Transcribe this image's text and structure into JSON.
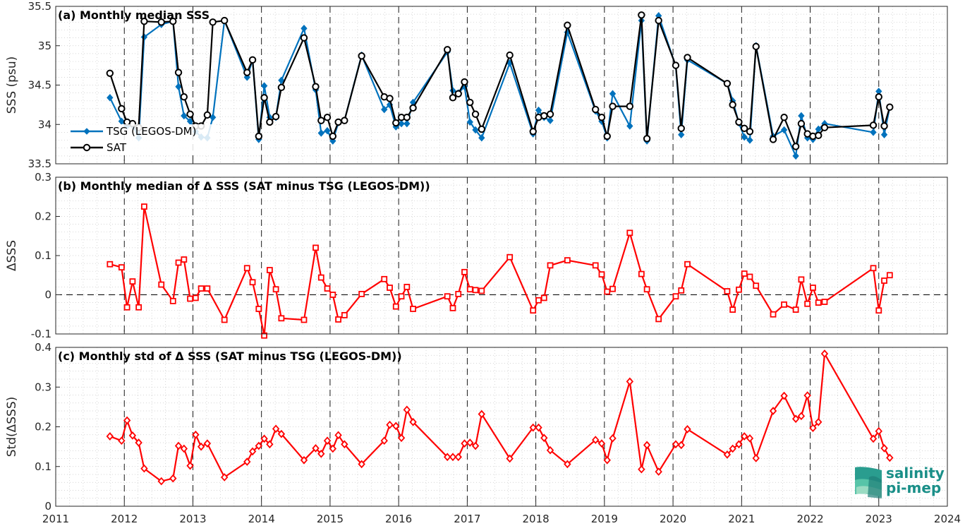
{
  "logo": {
    "line1": "salinity",
    "line2": "pi-mep"
  },
  "chart_data": [
    {
      "type": "line",
      "title": "(a) Monthly median SSS",
      "ylabel": "SSS (psu)",
      "xlabel": "",
      "xlim": [
        2011,
        2024
      ],
      "ylim": [
        33.5,
        35.5
      ],
      "yticks": [
        33.5,
        34,
        34.5,
        35,
        35.5
      ],
      "ytick_labels": [
        "33.5",
        "34",
        "34.5",
        "35",
        "35.5"
      ],
      "grid": "minor dotted",
      "legend_position": "left",
      "series": [
        {
          "name": "TSG (LEGOS-DM)",
          "color": "#0072BD",
          "marker": "diamond",
          "x": [
            2011.79,
            2011.96,
            2012.04,
            2012.12,
            2012.21,
            2012.29,
            2012.54,
            2012.71,
            2012.79,
            2012.87,
            2012.96,
            2013.04,
            2013.12,
            2013.21,
            2013.29,
            2013.46,
            2013.79,
            2013.87,
            2013.96,
            2014.04,
            2014.12,
            2014.21,
            2014.29,
            2014.62,
            2014.79,
            2014.87,
            2014.96,
            2015.04,
            2015.12,
            2015.21,
            2015.46,
            2015.79,
            2015.87,
            2015.96,
            2016.04,
            2016.12,
            2016.21,
            2016.71,
            2016.79,
            2016.87,
            2016.96,
            2017.04,
            2017.12,
            2017.21,
            2017.62,
            2017.96,
            2018.04,
            2018.12,
            2018.21,
            2018.46,
            2018.87,
            2018.96,
            2019.04,
            2019.12,
            2019.37,
            2019.54,
            2019.62,
            2019.79,
            2020.04,
            2020.12,
            2020.21,
            2020.79,
            2020.87,
            2020.96,
            2021.04,
            2021.12,
            2021.21,
            2021.46,
            2021.62,
            2021.79,
            2021.87,
            2021.96,
            2022.04,
            2022.12,
            2022.21,
            2022.92,
            2023.0,
            2023.08,
            2023.16
          ],
          "y": [
            34.34,
            34.04,
            33.98,
            33.99,
            33.83,
            35.11,
            35.27,
            35.31,
            34.48,
            34.11,
            34.04,
            33.91,
            33.84,
            33.83,
            34.09,
            35.32,
            34.6,
            34.82,
            33.81,
            34.49,
            34.09,
            34.09,
            34.56,
            35.22,
            34.44,
            33.89,
            33.92,
            33.79,
            34.02,
            34.05,
            34.88,
            34.19,
            34.25,
            33.97,
            34.01,
            34.01,
            34.28,
            34.92,
            34.43,
            34.4,
            34.48,
            34.03,
            33.93,
            33.83,
            34.78,
            33.88,
            34.18,
            34.09,
            34.05,
            35.17,
            34.17,
            34.04,
            33.83,
            34.39,
            33.98,
            35.32,
            33.79,
            35.38,
            34.74,
            33.87,
            34.82,
            34.52,
            34.3,
            34.02,
            33.84,
            33.8,
            35.0,
            33.85,
            33.93,
            33.6,
            34.11,
            33.83,
            33.81,
            33.94,
            34.01,
            33.9,
            34.42,
            33.87,
            34.22
          ]
        },
        {
          "name": "SAT",
          "color": "#000000",
          "marker": "circle",
          "x": [
            2011.79,
            2011.96,
            2012.04,
            2012.12,
            2012.21,
            2012.29,
            2012.54,
            2012.71,
            2012.79,
            2012.87,
            2012.96,
            2013.04,
            2013.12,
            2013.21,
            2013.29,
            2013.46,
            2013.79,
            2013.87,
            2013.96,
            2014.04,
            2014.12,
            2014.21,
            2014.29,
            2014.62,
            2014.79,
            2014.87,
            2014.96,
            2015.04,
            2015.12,
            2015.21,
            2015.46,
            2015.79,
            2015.87,
            2015.96,
            2016.04,
            2016.12,
            2016.21,
            2016.71,
            2016.79,
            2016.87,
            2016.96,
            2017.04,
            2017.12,
            2017.21,
            2017.62,
            2017.96,
            2018.04,
            2018.12,
            2018.21,
            2018.46,
            2018.87,
            2018.96,
            2019.04,
            2019.12,
            2019.37,
            2019.54,
            2019.62,
            2019.79,
            2020.04,
            2020.12,
            2020.21,
            2020.79,
            2020.87,
            2020.96,
            2021.04,
            2021.12,
            2021.21,
            2021.46,
            2021.62,
            2021.79,
            2021.87,
            2021.96,
            2022.04,
            2022.12,
            2022.21,
            2022.92,
            2023.0,
            2023.08,
            2023.16
          ],
          "y": [
            34.65,
            34.2,
            34.03,
            34.01,
            33.96,
            35.31,
            35.3,
            35.31,
            34.66,
            34.35,
            34.13,
            33.98,
            33.98,
            34.12,
            35.3,
            35.32,
            34.66,
            34.82,
            33.85,
            34.34,
            34.03,
            34.1,
            34.47,
            35.1,
            34.48,
            34.05,
            34.09,
            33.85,
            34.03,
            34.05,
            34.87,
            34.35,
            34.33,
            34.02,
            34.09,
            34.09,
            34.21,
            34.95,
            34.34,
            34.39,
            34.54,
            34.28,
            34.13,
            33.94,
            34.88,
            33.91,
            34.09,
            34.11,
            34.13,
            35.26,
            34.19,
            34.09,
            33.85,
            34.23,
            34.23,
            35.39,
            33.82,
            35.32,
            34.75,
            33.95,
            34.85,
            34.52,
            34.25,
            34.03,
            33.95,
            33.91,
            34.99,
            33.81,
            34.09,
            33.72,
            34.01,
            33.88,
            33.85,
            33.86,
            33.96,
            33.99,
            34.35,
            33.98,
            34.22
          ]
        }
      ]
    },
    {
      "type": "line",
      "title": "(b) Monthly median of Δ SSS (SAT minus TSG (LEGOS-DM))",
      "ylabel": "ΔSSS",
      "xlabel": "",
      "xlim": [
        2011,
        2024
      ],
      "ylim": [
        -0.1,
        0.3
      ],
      "yticks": [
        -0.1,
        0,
        0.1,
        0.2,
        0.3
      ],
      "ytick_labels": [
        "-0.1",
        "0",
        "0.1",
        "0.2",
        "0.3"
      ],
      "zero_line": true,
      "grid": "minor dotted",
      "series": [
        {
          "name": "",
          "color": "#FF0000",
          "marker": "square",
          "x": [
            2011.79,
            2011.96,
            2012.04,
            2012.12,
            2012.21,
            2012.29,
            2012.54,
            2012.71,
            2012.79,
            2012.87,
            2012.96,
            2013.04,
            2013.12,
            2013.21,
            2013.46,
            2013.79,
            2013.87,
            2013.96,
            2014.04,
            2014.12,
            2014.21,
            2014.29,
            2014.62,
            2014.79,
            2014.87,
            2014.96,
            2015.04,
            2015.12,
            2015.21,
            2015.46,
            2015.79,
            2015.87,
            2015.96,
            2016.04,
            2016.12,
            2016.21,
            2016.71,
            2016.79,
            2016.87,
            2016.96,
            2017.04,
            2017.12,
            2017.21,
            2017.62,
            2017.96,
            2018.04,
            2018.12,
            2018.21,
            2018.46,
            2018.87,
            2018.96,
            2019.04,
            2019.12,
            2019.37,
            2019.54,
            2019.62,
            2019.79,
            2020.04,
            2020.12,
            2020.21,
            2020.79,
            2020.87,
            2020.96,
            2021.04,
            2021.12,
            2021.21,
            2021.46,
            2021.62,
            2021.79,
            2021.87,
            2021.96,
            2022.04,
            2022.12,
            2022.21,
            2022.92,
            2023.0,
            2023.08,
            2023.16
          ],
          "y": [
            0.078,
            0.07,
            -0.032,
            0.034,
            -0.032,
            0.225,
            0.026,
            -0.016,
            0.082,
            0.09,
            -0.01,
            -0.008,
            0.016,
            0.016,
            -0.064,
            0.068,
            0.032,
            -0.036,
            -0.104,
            0.063,
            0.014,
            -0.06,
            -0.064,
            0.12,
            0.044,
            0.016,
            0.0,
            -0.063,
            -0.052,
            0.002,
            0.04,
            0.018,
            -0.03,
            -0.004,
            0.02,
            -0.036,
            -0.004,
            -0.034,
            0.002,
            0.058,
            0.014,
            0.012,
            0.01,
            0.096,
            -0.04,
            -0.014,
            -0.008,
            0.075,
            0.088,
            0.075,
            0.052,
            0.008,
            0.015,
            0.158,
            0.053,
            0.014,
            -0.062,
            -0.004,
            0.011,
            0.078,
            0.009,
            -0.038,
            0.013,
            0.054,
            0.046,
            0.023,
            -0.05,
            -0.025,
            -0.038,
            0.039,
            -0.023,
            0.018,
            -0.02,
            -0.018,
            0.068,
            -0.04,
            0.036,
            0.05
          ]
        }
      ]
    },
    {
      "type": "line",
      "title": "(c) Monthly std of Δ SSS (SAT minus TSG (LEGOS-DM))",
      "ylabel": "Std(ΔSSS)",
      "xlabel": "",
      "xlim": [
        2011,
        2024
      ],
      "ylim": [
        0,
        0.4
      ],
      "yticks": [
        0,
        0.1,
        0.2,
        0.3,
        0.4
      ],
      "ytick_labels": [
        "0",
        "0.1",
        "0.2",
        "0.3",
        "0.4"
      ],
      "xticks": [
        2011,
        2012,
        2013,
        2014,
        2015,
        2016,
        2017,
        2018,
        2019,
        2020,
        2021,
        2022,
        2023,
        2024
      ],
      "xtick_labels": [
        "2011",
        "2012",
        "2013",
        "2014",
        "2015",
        "2016",
        "2017",
        "2018",
        "2019",
        "2020",
        "2021",
        "2022",
        "2023",
        "2024"
      ],
      "grid": "minor dotted",
      "series": [
        {
          "name": "",
          "color": "#FF0000",
          "marker": "diamond",
          "x": [
            2011.79,
            2011.96,
            2012.04,
            2012.12,
            2012.21,
            2012.29,
            2012.54,
            2012.71,
            2012.79,
            2012.87,
            2012.96,
            2013.04,
            2013.12,
            2013.21,
            2013.46,
            2013.79,
            2013.87,
            2013.96,
            2014.04,
            2014.12,
            2014.21,
            2014.29,
            2014.62,
            2014.79,
            2014.87,
            2014.96,
            2015.04,
            2015.12,
            2015.21,
            2015.46,
            2015.79,
            2015.87,
            2015.96,
            2016.04,
            2016.12,
            2016.21,
            2016.71,
            2016.79,
            2016.87,
            2016.96,
            2017.04,
            2017.12,
            2017.21,
            2017.62,
            2017.96,
            2018.04,
            2018.12,
            2018.21,
            2018.46,
            2018.87,
            2018.96,
            2019.04,
            2019.12,
            2019.37,
            2019.54,
            2019.62,
            2019.79,
            2020.04,
            2020.12,
            2020.21,
            2020.79,
            2020.87,
            2020.96,
            2021.04,
            2021.12,
            2021.21,
            2021.46,
            2021.62,
            2021.79,
            2021.87,
            2021.96,
            2022.04,
            2022.12,
            2022.21,
            2022.92,
            2023.0,
            2023.08,
            2023.16
          ],
          "y": [
            0.176,
            0.165,
            0.216,
            0.178,
            0.16,
            0.095,
            0.063,
            0.07,
            0.152,
            0.145,
            0.102,
            0.18,
            0.15,
            0.158,
            0.073,
            0.112,
            0.138,
            0.152,
            0.17,
            0.156,
            0.195,
            0.182,
            0.116,
            0.146,
            0.132,
            0.165,
            0.145,
            0.179,
            0.156,
            0.106,
            0.165,
            0.205,
            0.202,
            0.172,
            0.243,
            0.212,
            0.124,
            0.124,
            0.124,
            0.158,
            0.16,
            0.152,
            0.232,
            0.12,
            0.198,
            0.198,
            0.172,
            0.141,
            0.106,
            0.167,
            0.158,
            0.116,
            0.171,
            0.314,
            0.093,
            0.154,
            0.087,
            0.156,
            0.154,
            0.194,
            0.13,
            0.145,
            0.156,
            0.176,
            0.171,
            0.121,
            0.24,
            0.278,
            0.22,
            0.227,
            0.279,
            0.197,
            0.212,
            0.384,
            0.17,
            0.189,
            0.146,
            0.122
          ]
        }
      ]
    }
  ]
}
